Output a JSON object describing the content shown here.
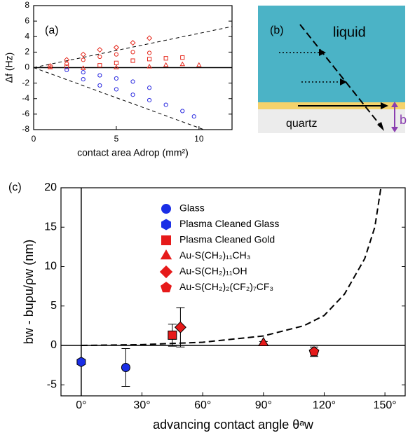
{
  "chart_data": [
    {
      "type": "scatter",
      "panel_label": "(a)",
      "x_label": "contact area Adrop (mm²)",
      "y_label": "Δf (Hz)",
      "xlim": [
        0,
        12
      ],
      "ylim": [
        -8,
        8
      ],
      "xticks": [
        0,
        5,
        10
      ],
      "yticks": [
        -8,
        -6,
        -4,
        -2,
        0,
        2,
        4,
        6,
        8
      ],
      "series": [
        {
          "color": "#e62a1e",
          "marker": "diamond",
          "x": [
            1,
            2,
            3,
            4,
            5,
            6,
            7
          ],
          "values": [
            0.2,
            1,
            1.7,
            2.3,
            2.6,
            3.2,
            3.8
          ]
        },
        {
          "color": "#e62a1e",
          "marker": "circle",
          "x": [
            2,
            3,
            4,
            5,
            6,
            7
          ],
          "values": [
            0.5,
            1,
            1.4,
            1.7,
            2,
            1.9
          ]
        },
        {
          "color": "#e62a1e",
          "marker": "square",
          "x": [
            2,
            4,
            5,
            6,
            7,
            8,
            9
          ],
          "values": [
            0.1,
            0.3,
            0.6,
            0.9,
            1.1,
            1.2,
            1.3
          ]
        },
        {
          "color": "#e62a1e",
          "marker": "triangle",
          "x": [
            1,
            3,
            5,
            7,
            8,
            9,
            10
          ],
          "values": [
            0,
            -0.1,
            0,
            0.1,
            0.3,
            0.4,
            0.3
          ]
        },
        {
          "color": "#2a2ae0",
          "marker": "circle",
          "x": [
            2,
            3,
            4,
            5,
            6,
            7
          ],
          "values": [
            -0.3,
            -0.6,
            -1,
            -1.4,
            -1.8,
            -2.6
          ]
        },
        {
          "color": "#2a2ae0",
          "marker": "circle",
          "x": [
            3,
            4,
            5,
            6,
            7,
            8,
            9,
            9.7
          ],
          "values": [
            -1.5,
            -2.3,
            -2.8,
            -3.5,
            -4.2,
            -4.8,
            -5.6,
            -6.3
          ]
        }
      ],
      "reference_lines": [
        {
          "x": [
            0,
            12
          ],
          "values": [
            0,
            5.3
          ]
        },
        {
          "x": [
            0,
            10.3
          ],
          "values": [
            0,
            -8
          ]
        }
      ]
    },
    {
      "type": "scatter",
      "panel_label": "(c)",
      "x_label": "advancing contact angle θᵃw",
      "y_label": "bw - buρu/ρw (nm)",
      "xlim": [
        -10,
        160
      ],
      "ylim": [
        -6.4,
        20
      ],
      "xticks": [
        {
          "value": 0,
          "label": "0°"
        },
        {
          "value": 30,
          "label": "30°"
        },
        {
          "value": 60,
          "label": "60°"
        },
        {
          "value": 90,
          "label": "90°"
        },
        {
          "value": 120,
          "label": "120°"
        },
        {
          "value": 150,
          "label": "150°"
        }
      ],
      "yticks": [
        -5,
        0,
        5,
        10,
        15,
        20
      ],
      "series": [
        {
          "name": "Glass",
          "color": "#1a2ee6",
          "marker": "circle",
          "x": [
            22
          ],
          "values": [
            -2.8
          ],
          "errors": [
            2.4
          ]
        },
        {
          "name": "Plasma Cleaned Glass",
          "color": "#1a2ee6",
          "marker": "hexagon",
          "x": [
            0
          ],
          "values": [
            -2.1
          ],
          "errors": [
            0.3
          ]
        },
        {
          "name": "Plasma Cleaned Gold",
          "color": "#e61a1a",
          "marker": "square",
          "x": [
            45
          ],
          "values": [
            1.3
          ],
          "errors": [
            1.4
          ]
        },
        {
          "name": "Au-S(CH₂)₁₁CH₃",
          "color": "#e61a1a",
          "marker": "triangle",
          "x": [
            90
          ],
          "values": [
            0.3
          ],
          "errors": [
            0.2
          ]
        },
        {
          "name": "Au-S(CH₂)₁₁OH",
          "color": "#e61a1a",
          "marker": "diamond",
          "x": [
            49
          ],
          "values": [
            2.3
          ],
          "errors": [
            2.5
          ]
        },
        {
          "name": "Au-S(CH₂)₂(CF₂)₇CF₃",
          "color": "#e61a1a",
          "marker": "pentagon",
          "x": [
            115
          ],
          "values": [
            -0.8
          ],
          "errors": [
            0.6
          ]
        }
      ],
      "model_curve": {
        "x": [
          0,
          30,
          60,
          90,
          110,
          120,
          130,
          140,
          145,
          148
        ],
        "values": [
          0,
          0.1,
          0.4,
          1.2,
          2.5,
          3.8,
          6.5,
          11,
          15,
          20
        ]
      }
    }
  ],
  "diagram": {
    "label": "(b)",
    "liquid": "liquid",
    "quartz": "quartz",
    "b": "b"
  }
}
